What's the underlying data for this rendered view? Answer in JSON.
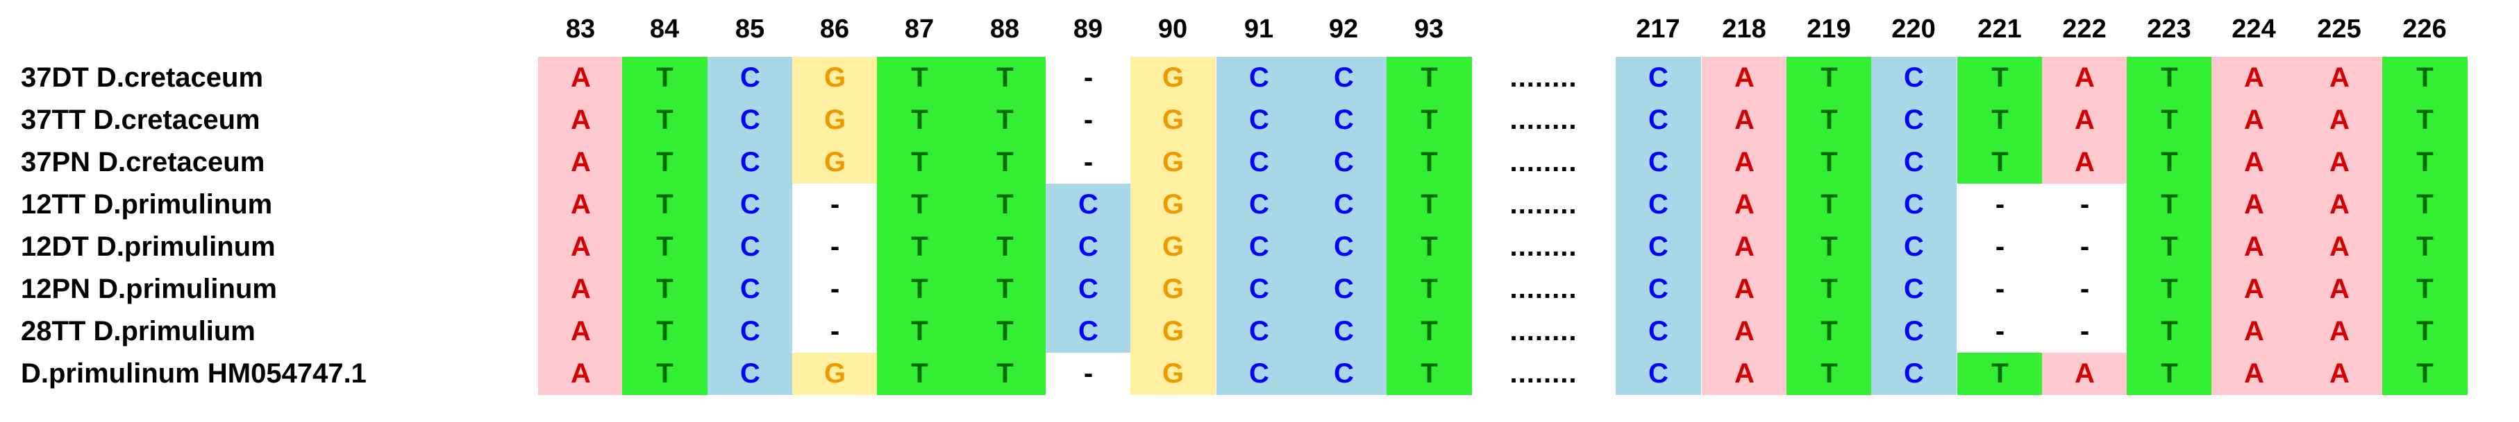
{
  "colors": {
    "A": {
      "bg": "#fec8cf",
      "fg": "#d40000"
    },
    "T": {
      "bg": "#33ee33",
      "fg": "#006b00"
    },
    "C": {
      "bg": "#a8d8e8",
      "fg": "#0000ff"
    },
    "G": {
      "bg": "#fef0a0",
      "fg": "#ee9900"
    },
    "-": {
      "bg": "#ffffff",
      "fg": "#000000"
    }
  },
  "gap_marker": "........",
  "positions": [
    "83",
    "84",
    "85",
    "86",
    "87",
    "88",
    "89",
    "90",
    "91",
    "92",
    "93",
    "217",
    "218",
    "219",
    "220",
    "221",
    "222",
    "223",
    "224",
    "225",
    "226"
  ],
  "sequences": [
    {
      "label": "37DT D.cretaceum",
      "bases": [
        "A",
        "T",
        "C",
        "G",
        "T",
        "T",
        "-",
        "G",
        "C",
        "C",
        "T",
        "C",
        "A",
        "T",
        "C",
        "T",
        "A",
        "T",
        "A",
        "A",
        "T"
      ]
    },
    {
      "label": "37TT D.cretaceum",
      "bases": [
        "A",
        "T",
        "C",
        "G",
        "T",
        "T",
        "-",
        "G",
        "C",
        "C",
        "T",
        "C",
        "A",
        "T",
        "C",
        "T",
        "A",
        "T",
        "A",
        "A",
        "T"
      ]
    },
    {
      "label": "37PN D.cretaceum",
      "bases": [
        "A",
        "T",
        "C",
        "G",
        "T",
        "T",
        "-",
        "G",
        "C",
        "C",
        "T",
        "C",
        "A",
        "T",
        "C",
        "T",
        "A",
        "T",
        "A",
        "A",
        "T"
      ]
    },
    {
      "label": "12TT D.primulinum",
      "bases": [
        "A",
        "T",
        "C",
        "-",
        "T",
        "T",
        "C",
        "G",
        "C",
        "C",
        "T",
        "C",
        "A",
        "T",
        "C",
        "-",
        "-",
        "T",
        "A",
        "A",
        "T"
      ]
    },
    {
      "label": "12DT D.primulinum",
      "bases": [
        "A",
        "T",
        "C",
        "-",
        "T",
        "T",
        "C",
        "G",
        "C",
        "C",
        "T",
        "C",
        "A",
        "T",
        "C",
        "-",
        "-",
        "T",
        "A",
        "A",
        "T"
      ]
    },
    {
      "label": "12PN D.primulinum",
      "bases": [
        "A",
        "T",
        "C",
        "-",
        "T",
        "T",
        "C",
        "G",
        "C",
        "C",
        "T",
        "C",
        "A",
        "T",
        "C",
        "-",
        "-",
        "T",
        "A",
        "A",
        "T"
      ]
    },
    {
      "label": "28TT D.primulium",
      "bases": [
        "A",
        "T",
        "C",
        "-",
        "T",
        "T",
        "C",
        "G",
        "C",
        "C",
        "T",
        "C",
        "A",
        "T",
        "C",
        "-",
        "-",
        "T",
        "A",
        "A",
        "T"
      ]
    },
    {
      "label": "D.primulinum HM054747.1",
      "bases": [
        "A",
        "T",
        "C",
        "G",
        "T",
        "T",
        "-",
        "G",
        "C",
        "C",
        "T",
        "C",
        "A",
        "T",
        "C",
        "T",
        "A",
        "T",
        "A",
        "A",
        "T"
      ]
    }
  ]
}
